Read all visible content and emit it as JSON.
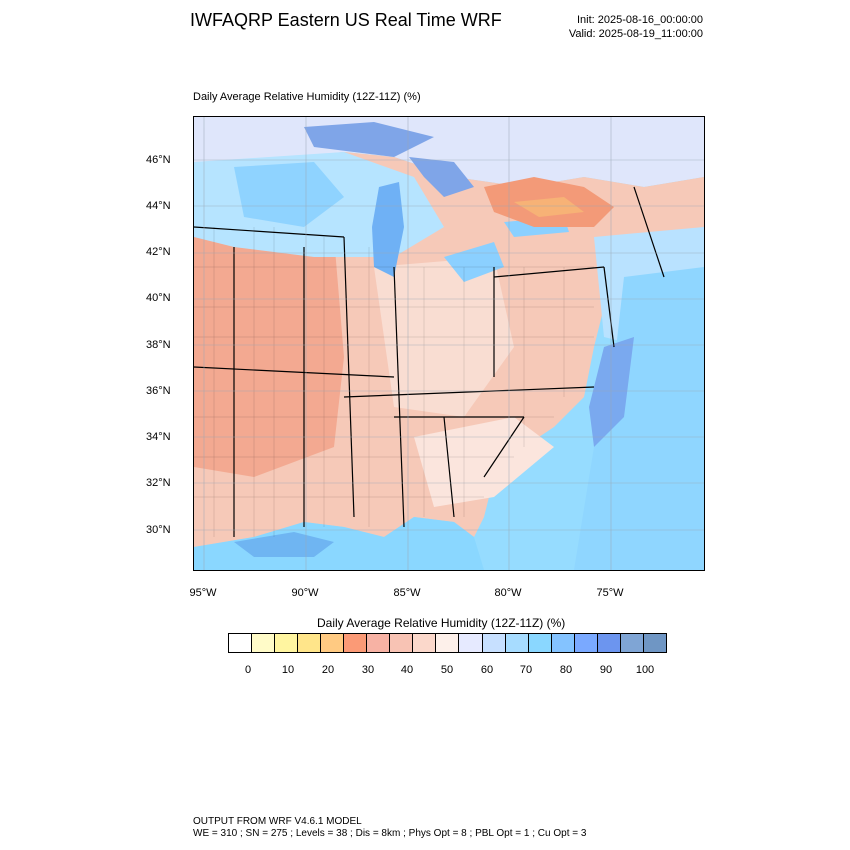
{
  "header": {
    "title": "IWFAQRP Eastern US Real Time WRF",
    "init": "Init: 2025-08-16_00:00:00",
    "valid": "Valid: 2025-08-19_11:00:00"
  },
  "map": {
    "field_label": "Daily Average Relative Humidity (12Z-11Z)   (%)",
    "lat_labels": [
      "46°N",
      "44°N",
      "42°N",
      "40°N",
      "38°N",
      "36°N",
      "34°N",
      "32°N",
      "30°N"
    ],
    "lon_labels": [
      "95°W",
      "90°W",
      "85°W",
      "80°W",
      "75°W"
    ]
  },
  "colorbar": {
    "title": "Daily Average Relative Humidity (12Z-11Z)  (%)",
    "ticks": [
      "0",
      "10",
      "20",
      "30",
      "40",
      "50",
      "60",
      "70",
      "80",
      "90",
      "100"
    ],
    "colors": [
      "#ffffff",
      "#fffbc8",
      "#fff5a0",
      "#ffe58a",
      "#ffca82",
      "#fb9a76",
      "#f7b2a4",
      "#f8c3b4",
      "#fbd8cb",
      "#fdf0ea",
      "#e6eaff",
      "#c7e0ff",
      "#a7dcff",
      "#8ad7ff",
      "#84c3ff",
      "#7aa9ff",
      "#6c95ef",
      "#7fa5d5",
      "#6f96c4"
    ]
  },
  "footer": {
    "line1": "OUTPUT FROM WRF V4.6.1 MODEL",
    "line2": "WE = 310 ; SN = 275 ; Levels = 38 ; Dis = 8km ; Phys Opt = 8 ; PBL Opt = 1 ; Cu Opt = 3"
  }
}
